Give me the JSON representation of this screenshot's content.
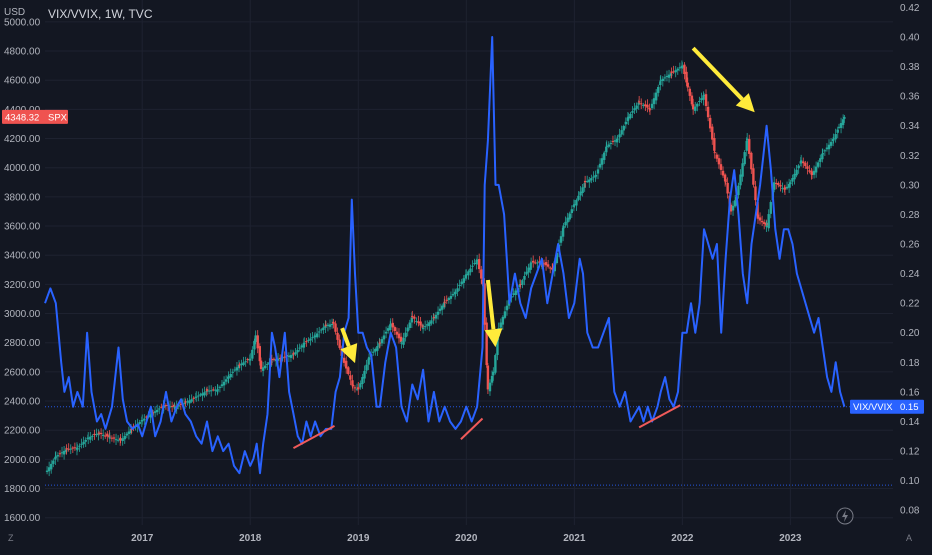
{
  "header": {
    "title": "VIX/VVIX, 1W, TVC",
    "left_axis_unit": "USD"
  },
  "footer": {
    "left_corner": "Z",
    "right_corner": "A"
  },
  "colors": {
    "background": "#131722",
    "grid": "#1e2230",
    "axis_text": "#b2b5be",
    "ratio_line": "#2962ff",
    "candle_up": "#26a69a",
    "candle_down": "#ef5350",
    "annotation_arrow": "#ffeb3b",
    "trendline": "#f05a5a",
    "spx_badge": "#ef5350",
    "ratio_badge": "#2962ff"
  },
  "chart_data": {
    "type": "line",
    "title": "VIX/VVIX, 1W, TVC",
    "x_ticks": [
      "2017",
      "2018",
      "2019",
      "2020",
      "2021",
      "2022",
      "2023"
    ],
    "left_axis": {
      "unit": "USD",
      "ticks": [
        "1600.00",
        "1800.00",
        "2000.00",
        "2200.00",
        "2400.00",
        "2600.00",
        "2800.00",
        "3000.00",
        "3200.00",
        "3400.00",
        "3600.00",
        "3800.00",
        "4000.00",
        "4200.00",
        "4400.00",
        "4600.00",
        "4800.00",
        "5000.00"
      ],
      "range": [
        1550,
        5150
      ]
    },
    "right_axis": {
      "ticks": [
        "0.08",
        "0.10",
        "0.12",
        "0.14",
        "0.16",
        "0.18",
        "0.20",
        "0.22",
        "0.24",
        "0.26",
        "0.28",
        "0.30",
        "0.32",
        "0.34",
        "0.36",
        "0.38",
        "0.40",
        "0.42"
      ],
      "range": [
        0.07,
        0.425
      ]
    },
    "x_range": [
      2016.1,
      2023.95
    ],
    "badges": {
      "spx_value": "4348.32",
      "spx_label": "SPX",
      "ratio_value": "0.15",
      "ratio_label": "VIX/VVIX"
    },
    "reference_levels": {
      "ratio_dotted": [
        0.15,
        0.097
      ]
    },
    "series": [
      {
        "name": "VIX/VVIX",
        "kind": "line",
        "points": [
          [
            2016.1,
            0.22
          ],
          [
            2016.15,
            0.23
          ],
          [
            2016.2,
            0.22
          ],
          [
            2016.25,
            0.18
          ],
          [
            2016.28,
            0.16
          ],
          [
            2016.32,
            0.17
          ],
          [
            2016.36,
            0.15
          ],
          [
            2016.4,
            0.16
          ],
          [
            2016.45,
            0.15
          ],
          [
            2016.49,
            0.2
          ],
          [
            2016.53,
            0.16
          ],
          [
            2016.58,
            0.14
          ],
          [
            2016.62,
            0.145
          ],
          [
            2016.66,
            0.135
          ],
          [
            2016.72,
            0.15
          ],
          [
            2016.78,
            0.19
          ],
          [
            2016.82,
            0.155
          ],
          [
            2016.86,
            0.14
          ],
          [
            2016.91,
            0.135
          ],
          [
            2016.96,
            0.138
          ],
          [
            2017.0,
            0.13
          ],
          [
            2017.04,
            0.14
          ],
          [
            2017.08,
            0.15
          ],
          [
            2017.12,
            0.13
          ],
          [
            2017.17,
            0.14
          ],
          [
            2017.22,
            0.16
          ],
          [
            2017.27,
            0.14
          ],
          [
            2017.32,
            0.15
          ],
          [
            2017.36,
            0.155
          ],
          [
            2017.4,
            0.145
          ],
          [
            2017.45,
            0.14
          ],
          [
            2017.5,
            0.13
          ],
          [
            2017.55,
            0.125
          ],
          [
            2017.6,
            0.14
          ],
          [
            2017.65,
            0.12
          ],
          [
            2017.7,
            0.13
          ],
          [
            2017.75,
            0.12
          ],
          [
            2017.8,
            0.125
          ],
          [
            2017.85,
            0.11
          ],
          [
            2017.9,
            0.105
          ],
          [
            2017.95,
            0.12
          ],
          [
            2018.0,
            0.11
          ],
          [
            2018.03,
            0.115
          ],
          [
            2018.06,
            0.125
          ],
          [
            2018.09,
            0.105
          ],
          [
            2018.12,
            0.125
          ],
          [
            2018.16,
            0.145
          ],
          [
            2018.2,
            0.2
          ],
          [
            2018.23,
            0.19
          ],
          [
            2018.27,
            0.17
          ],
          [
            2018.32,
            0.2
          ],
          [
            2018.36,
            0.16
          ],
          [
            2018.4,
            0.145
          ],
          [
            2018.44,
            0.13
          ],
          [
            2018.48,
            0.125
          ],
          [
            2018.52,
            0.14
          ],
          [
            2018.56,
            0.13
          ],
          [
            2018.6,
            0.14
          ],
          [
            2018.65,
            0.13
          ],
          [
            2018.7,
            0.135
          ],
          [
            2018.75,
            0.135
          ],
          [
            2018.79,
            0.16
          ],
          [
            2018.83,
            0.17
          ],
          [
            2018.87,
            0.2
          ],
          [
            2018.91,
            0.21
          ],
          [
            2018.94,
            0.29
          ],
          [
            2018.97,
            0.24
          ],
          [
            2019.0,
            0.2
          ],
          [
            2019.04,
            0.2
          ],
          [
            2019.08,
            0.19
          ],
          [
            2019.12,
            0.185
          ],
          [
            2019.17,
            0.15
          ],
          [
            2019.2,
            0.15
          ],
          [
            2019.25,
            0.18
          ],
          [
            2019.3,
            0.2
          ],
          [
            2019.35,
            0.19
          ],
          [
            2019.4,
            0.15
          ],
          [
            2019.45,
            0.14
          ],
          [
            2019.5,
            0.165
          ],
          [
            2019.55,
            0.155
          ],
          [
            2019.6,
            0.175
          ],
          [
            2019.65,
            0.14
          ],
          [
            2019.7,
            0.16
          ],
          [
            2019.75,
            0.14
          ],
          [
            2019.8,
            0.15
          ],
          [
            2019.85,
            0.14
          ],
          [
            2019.9,
            0.135
          ],
          [
            2019.95,
            0.14
          ],
          [
            2020.0,
            0.15
          ],
          [
            2020.05,
            0.14
          ],
          [
            2020.1,
            0.15
          ],
          [
            2020.15,
            0.19
          ],
          [
            2020.17,
            0.3
          ],
          [
            2020.2,
            0.33
          ],
          [
            2020.24,
            0.4
          ],
          [
            2020.27,
            0.3
          ],
          [
            2020.3,
            0.3
          ],
          [
            2020.35,
            0.28
          ],
          [
            2020.4,
            0.22
          ],
          [
            2020.45,
            0.24
          ],
          [
            2020.5,
            0.22
          ],
          [
            2020.55,
            0.21
          ],
          [
            2020.6,
            0.23
          ],
          [
            2020.65,
            0.24
          ],
          [
            2020.7,
            0.25
          ],
          [
            2020.75,
            0.22
          ],
          [
            2020.8,
            0.24
          ],
          [
            2020.85,
            0.26
          ],
          [
            2020.9,
            0.24
          ],
          [
            2020.95,
            0.21
          ],
          [
            2021.0,
            0.22
          ],
          [
            2021.05,
            0.25
          ],
          [
            2021.08,
            0.24
          ],
          [
            2021.12,
            0.2
          ],
          [
            2021.17,
            0.19
          ],
          [
            2021.22,
            0.19
          ],
          [
            2021.27,
            0.2
          ],
          [
            2021.32,
            0.21
          ],
          [
            2021.37,
            0.16
          ],
          [
            2021.42,
            0.15
          ],
          [
            2021.47,
            0.16
          ],
          [
            2021.52,
            0.14
          ],
          [
            2021.56,
            0.145
          ],
          [
            2021.6,
            0.15
          ],
          [
            2021.64,
            0.14
          ],
          [
            2021.68,
            0.15
          ],
          [
            2021.72,
            0.14
          ],
          [
            2021.77,
            0.15
          ],
          [
            2021.8,
            0.16
          ],
          [
            2021.84,
            0.17
          ],
          [
            2021.88,
            0.155
          ],
          [
            2021.92,
            0.15
          ],
          [
            2021.96,
            0.16
          ],
          [
            2022.0,
            0.2
          ],
          [
            2022.04,
            0.2
          ],
          [
            2022.08,
            0.22
          ],
          [
            2022.12,
            0.2
          ],
          [
            2022.16,
            0.22
          ],
          [
            2022.2,
            0.27
          ],
          [
            2022.24,
            0.26
          ],
          [
            2022.28,
            0.25
          ],
          [
            2022.32,
            0.26
          ],
          [
            2022.36,
            0.2
          ],
          [
            2022.4,
            0.25
          ],
          [
            2022.44,
            0.29
          ],
          [
            2022.48,
            0.31
          ],
          [
            2022.52,
            0.28
          ],
          [
            2022.56,
            0.24
          ],
          [
            2022.6,
            0.22
          ],
          [
            2022.64,
            0.26
          ],
          [
            2022.68,
            0.28
          ],
          [
            2022.72,
            0.3
          ],
          [
            2022.75,
            0.32
          ],
          [
            2022.78,
            0.34
          ],
          [
            2022.82,
            0.31
          ],
          [
            2022.86,
            0.27
          ],
          [
            2022.9,
            0.25
          ],
          [
            2022.94,
            0.27
          ],
          [
            2022.98,
            0.27
          ],
          [
            2023.02,
            0.26
          ],
          [
            2023.06,
            0.24
          ],
          [
            2023.1,
            0.23
          ],
          [
            2023.14,
            0.22
          ],
          [
            2023.18,
            0.21
          ],
          [
            2023.22,
            0.2
          ],
          [
            2023.26,
            0.21
          ],
          [
            2023.3,
            0.19
          ],
          [
            2023.34,
            0.17
          ],
          [
            2023.38,
            0.16
          ],
          [
            2023.42,
            0.18
          ],
          [
            2023.46,
            0.16
          ],
          [
            2023.5,
            0.15
          ]
        ]
      },
      {
        "name": "SPX",
        "kind": "candlestick",
        "points": [
          [
            2016.1,
            1900
          ],
          [
            2016.2,
            2020
          ],
          [
            2016.3,
            2070
          ],
          [
            2016.4,
            2080
          ],
          [
            2016.5,
            2150
          ],
          [
            2016.6,
            2180
          ],
          [
            2016.7,
            2150
          ],
          [
            2016.8,
            2130
          ],
          [
            2016.9,
            2210
          ],
          [
            2017.0,
            2270
          ],
          [
            2017.1,
            2320
          ],
          [
            2017.2,
            2370
          ],
          [
            2017.3,
            2360
          ],
          [
            2017.4,
            2390
          ],
          [
            2017.5,
            2430
          ],
          [
            2017.6,
            2470
          ],
          [
            2017.7,
            2480
          ],
          [
            2017.8,
            2570
          ],
          [
            2017.9,
            2650
          ],
          [
            2018.0,
            2690
          ],
          [
            2018.05,
            2850
          ],
          [
            2018.1,
            2620
          ],
          [
            2018.2,
            2680
          ],
          [
            2018.3,
            2700
          ],
          [
            2018.4,
            2720
          ],
          [
            2018.5,
            2800
          ],
          [
            2018.6,
            2850
          ],
          [
            2018.7,
            2920
          ],
          [
            2018.77,
            2930
          ],
          [
            2018.85,
            2700
          ],
          [
            2018.95,
            2500
          ],
          [
            2019.0,
            2480
          ],
          [
            2019.1,
            2700
          ],
          [
            2019.2,
            2800
          ],
          [
            2019.3,
            2930
          ],
          [
            2019.4,
            2800
          ],
          [
            2019.5,
            2980
          ],
          [
            2019.6,
            2900
          ],
          [
            2019.7,
            2970
          ],
          [
            2019.8,
            3080
          ],
          [
            2019.9,
            3150
          ],
          [
            2020.0,
            3270
          ],
          [
            2020.1,
            3370
          ],
          [
            2020.15,
            3200
          ],
          [
            2020.2,
            2480
          ],
          [
            2020.25,
            2600
          ],
          [
            2020.3,
            2900
          ],
          [
            2020.4,
            3100
          ],
          [
            2020.5,
            3200
          ],
          [
            2020.6,
            3350
          ],
          [
            2020.7,
            3350
          ],
          [
            2020.8,
            3300
          ],
          [
            2020.9,
            3600
          ],
          [
            2021.0,
            3750
          ],
          [
            2021.1,
            3900
          ],
          [
            2021.2,
            3950
          ],
          [
            2021.3,
            4150
          ],
          [
            2021.4,
            4200
          ],
          [
            2021.5,
            4350
          ],
          [
            2021.6,
            4450
          ],
          [
            2021.7,
            4400
          ],
          [
            2021.8,
            4600
          ],
          [
            2021.9,
            4650
          ],
          [
            2022.0,
            4700
          ],
          [
            2022.05,
            4550
          ],
          [
            2022.1,
            4400
          ],
          [
            2022.2,
            4500
          ],
          [
            2022.3,
            4100
          ],
          [
            2022.4,
            3900
          ],
          [
            2022.45,
            3700
          ],
          [
            2022.5,
            3800
          ],
          [
            2022.6,
            4200
          ],
          [
            2022.7,
            3650
          ],
          [
            2022.78,
            3600
          ],
          [
            2022.85,
            3900
          ],
          [
            2022.95,
            3850
          ],
          [
            2023.0,
            3900
          ],
          [
            2023.1,
            4050
          ],
          [
            2023.2,
            3950
          ],
          [
            2023.3,
            4100
          ],
          [
            2023.4,
            4200
          ],
          [
            2023.45,
            4280
          ],
          [
            2023.5,
            4348.32
          ]
        ]
      }
    ],
    "annotations": {
      "arrows": [
        {
          "from": [
            2018.85,
            2900
          ],
          "to": [
            2018.97,
            2660
          ]
        },
        {
          "from": [
            2020.2,
            3230
          ],
          "to": [
            2020.27,
            2770
          ]
        },
        {
          "from": [
            2022.1,
            4820
          ],
          "to": [
            2022.67,
            4380
          ]
        }
      ],
      "trendlines_ratio": [
        {
          "from": [
            2018.4,
            0.122
          ],
          "to": [
            2018.78,
            0.137
          ]
        },
        {
          "from": [
            2019.95,
            0.128
          ],
          "to": [
            2020.15,
            0.142
          ]
        },
        {
          "from": [
            2021.6,
            0.136
          ],
          "to": [
            2021.98,
            0.151
          ]
        }
      ]
    }
  }
}
